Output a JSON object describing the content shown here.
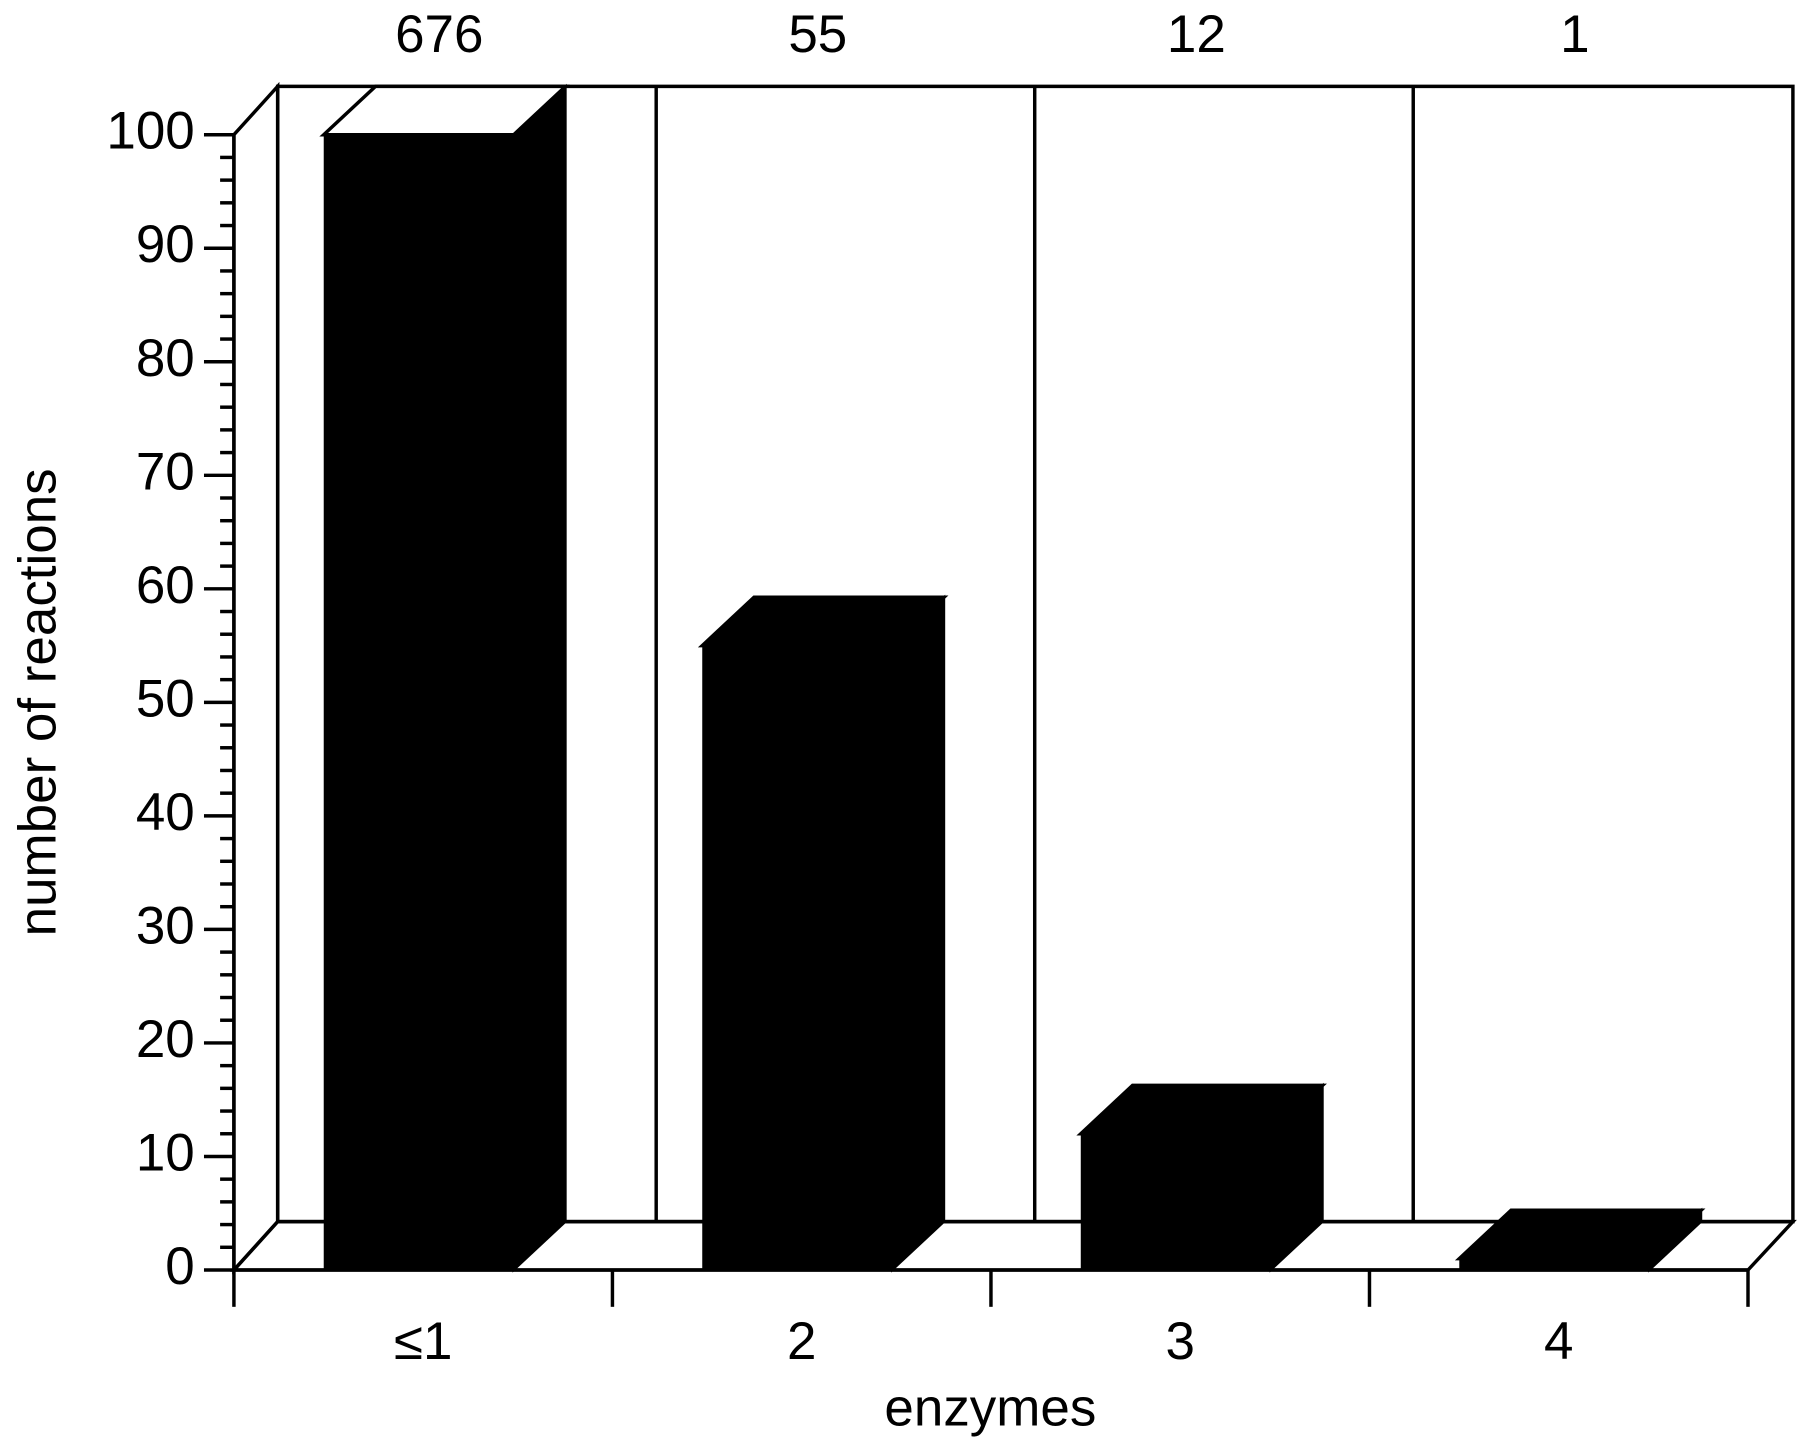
{
  "chart_data": {
    "type": "bar3d",
    "categories": [
      "≤1",
      "2",
      "3",
      "4"
    ],
    "values": [
      676,
      55,
      12,
      1
    ],
    "color": "#000000",
    "xlabel": "enzymes",
    "ylabel": "number of reactions",
    "ylim": [
      0,
      100
    ],
    "yticks": [
      0,
      10,
      20,
      30,
      40,
      50,
      60,
      70,
      80,
      90,
      100
    ],
    "yminorticks": [
      2,
      4,
      6,
      8,
      12,
      14,
      16,
      18,
      22,
      24,
      26,
      28,
      32,
      34,
      36,
      38,
      42,
      44,
      46,
      48,
      52,
      54,
      56,
      58,
      62,
      64,
      66,
      68,
      72,
      74,
      76,
      78,
      82,
      84,
      86,
      88,
      92,
      94,
      96,
      98
    ]
  }
}
